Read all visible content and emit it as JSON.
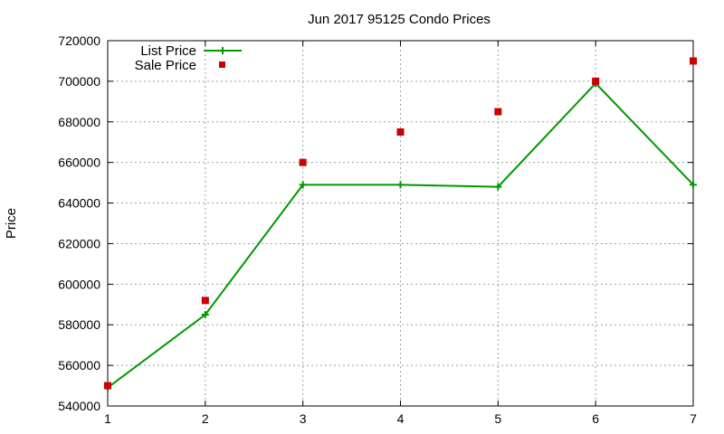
{
  "chart_data": {
    "type": "line",
    "title": "Jun 2017 95125 Condo Prices",
    "xlabel": "",
    "ylabel": "Price",
    "xlim": [
      1,
      7
    ],
    "ylim": [
      540000,
      720000
    ],
    "x_ticks": [
      1,
      2,
      3,
      4,
      5,
      6,
      7
    ],
    "y_ticks": [
      540000,
      560000,
      580000,
      600000,
      620000,
      640000,
      660000,
      680000,
      700000,
      720000
    ],
    "grid": true,
    "legend_position": "top-left",
    "series": [
      {
        "name": "List Price",
        "style": "line+cross",
        "color": "#009900",
        "x": [
          1,
          2,
          3,
          4,
          5,
          6,
          7
        ],
        "values": [
          549000,
          585000,
          649000,
          649000,
          648000,
          699000,
          649000
        ]
      },
      {
        "name": "Sale Price",
        "style": "square-points",
        "color": "#cc0000",
        "x": [
          1,
          2,
          3,
          4,
          5,
          6,
          7
        ],
        "values": [
          550000,
          592000,
          660000,
          675000,
          685000,
          700000,
          710000
        ]
      }
    ]
  }
}
